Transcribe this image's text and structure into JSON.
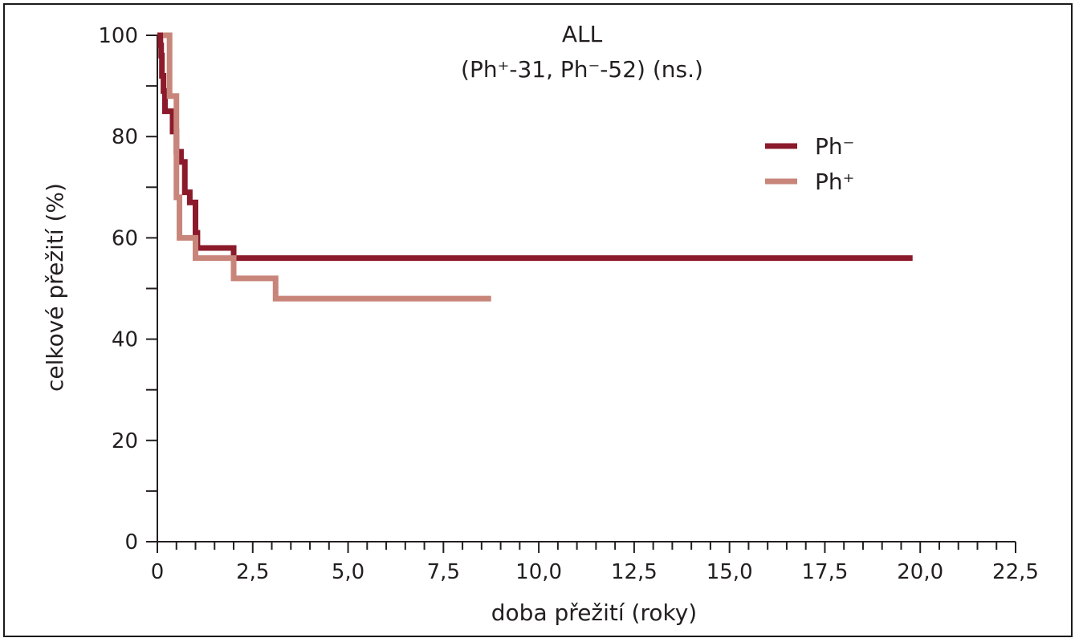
{
  "chart_data": {
    "type": "line",
    "step": true,
    "title": "ALL",
    "subtitle": "(Ph⁺-31, Ph⁻-52) (ns.)",
    "xlabel": "doba přežití (roky)",
    "ylabel": "celkové přežití (%)",
    "xlim": [
      0,
      22.5
    ],
    "ylim": [
      0,
      100
    ],
    "x_ticks": [
      0,
      2.5,
      5,
      7.5,
      10,
      12.5,
      15,
      17.5,
      20,
      22.5
    ],
    "x_tick_labels": [
      "0",
      "2,5",
      "5,0",
      "7,5",
      "10,0",
      "12,5",
      "15,0",
      "17,5",
      "20,0",
      "22,5"
    ],
    "y_ticks": [
      0,
      20,
      40,
      60,
      80,
      100
    ],
    "y_tick_labels": [
      "0",
      "20",
      "40",
      "60",
      "80",
      "100"
    ],
    "grid": false,
    "legend_position": "top-right",
    "series": [
      {
        "name": "Ph⁻",
        "color": "#8b1a2b",
        "points": [
          [
            0,
            100
          ],
          [
            0.08,
            98
          ],
          [
            0.1,
            96
          ],
          [
            0.12,
            92
          ],
          [
            0.16,
            89
          ],
          [
            0.2,
            85
          ],
          [
            0.4,
            81
          ],
          [
            0.5,
            77
          ],
          [
            0.62,
            75
          ],
          [
            0.72,
            69
          ],
          [
            0.85,
            67
          ],
          [
            1.0,
            61
          ],
          [
            1.05,
            58
          ],
          [
            2.0,
            56
          ],
          [
            19.8,
            56
          ]
        ]
      },
      {
        "name": "Ph⁺",
        "color": "#c8857a",
        "points": [
          [
            0.15,
            100
          ],
          [
            0.32,
            88
          ],
          [
            0.5,
            68
          ],
          [
            0.58,
            60
          ],
          [
            1.0,
            56
          ],
          [
            2.0,
            52
          ],
          [
            3.1,
            48
          ],
          [
            8.75,
            48
          ]
        ]
      }
    ]
  }
}
